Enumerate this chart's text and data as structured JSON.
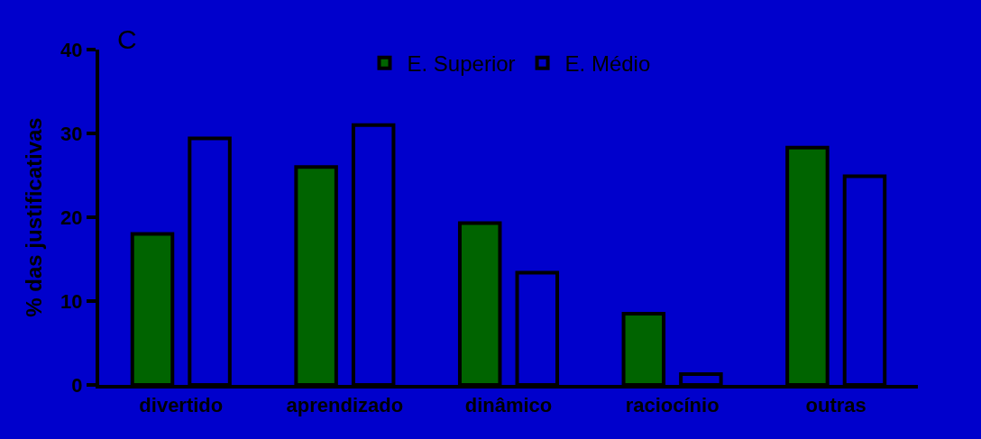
{
  "chart_data": {
    "type": "bar",
    "ylabel": "% das justificativas",
    "annotations": [
      "C"
    ],
    "categories": [
      "divertido",
      "aprendizado",
      "dinâmico",
      "raciocínio",
      "outras"
    ],
    "series": [
      {
        "name": "E. Superior",
        "color": "#006400",
        "values": [
          18.0,
          26.0,
          19.3,
          8.5,
          28.3
        ]
      },
      {
        "name": "E. Médio",
        "color": "#0000cc",
        "values": [
          29.4,
          31.0,
          13.4,
          1.3,
          24.9
        ]
      }
    ],
    "ylim": [
      0,
      40
    ],
    "yticks": [
      0,
      10,
      20,
      30,
      40
    ],
    "grid": false,
    "legend": "top"
  }
}
